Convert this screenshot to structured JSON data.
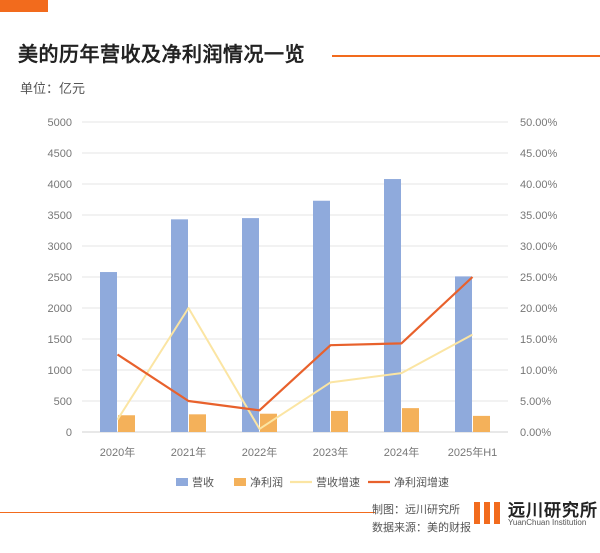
{
  "header": {
    "title": "美的历年营收及净利润情况一览",
    "unit": "单位：亿元"
  },
  "footer": {
    "maker": "制图：远川研究所",
    "source": "数据来源：美的财报",
    "logo_text": "远川研究所",
    "logo_subtext": "YuanChuan Institution"
  },
  "colors": {
    "accent": "#f26b1d",
    "revenue": "#8faadc",
    "profit": "#f4b15a",
    "revenue_growth": "#fbe5a3",
    "profit_growth": "#e8612c"
  },
  "chart_data": {
    "type": "bar",
    "categories": [
      "2020年",
      "2021年",
      "2022年",
      "2023年",
      "2024年",
      "2025年H1"
    ],
    "series": [
      {
        "name": "营收",
        "type": "bar",
        "axis": "left",
        "values": [
          2580,
          3430,
          3450,
          3730,
          4080,
          2510
        ]
      },
      {
        "name": "净利润",
        "type": "bar",
        "axis": "left",
        "values": [
          270,
          285,
          295,
          340,
          385,
          260
        ]
      },
      {
        "name": "营收增速",
        "type": "line",
        "axis": "right",
        "values": [
          2.0,
          20.0,
          0.5,
          8.0,
          9.5,
          15.7
        ]
      },
      {
        "name": "净利润增速",
        "type": "line",
        "axis": "right",
        "values": [
          12.5,
          5.0,
          3.5,
          14.0,
          14.3,
          25.0
        ]
      }
    ],
    "y_left": {
      "min": 0,
      "max": 5000,
      "ticks": [
        "0",
        "500",
        "1000",
        "1500",
        "2000",
        "2500",
        "3000",
        "3500",
        "4000",
        "4500",
        "5000"
      ]
    },
    "y_right": {
      "min": 0,
      "max": 50,
      "ticks": [
        "0.00%",
        "5.00%",
        "10.00%",
        "15.00%",
        "20.00%",
        "25.00%",
        "30.00%",
        "35.00%",
        "40.00%",
        "45.00%",
        "50.00%"
      ]
    },
    "grid": true,
    "legend_position": "bottom"
  }
}
